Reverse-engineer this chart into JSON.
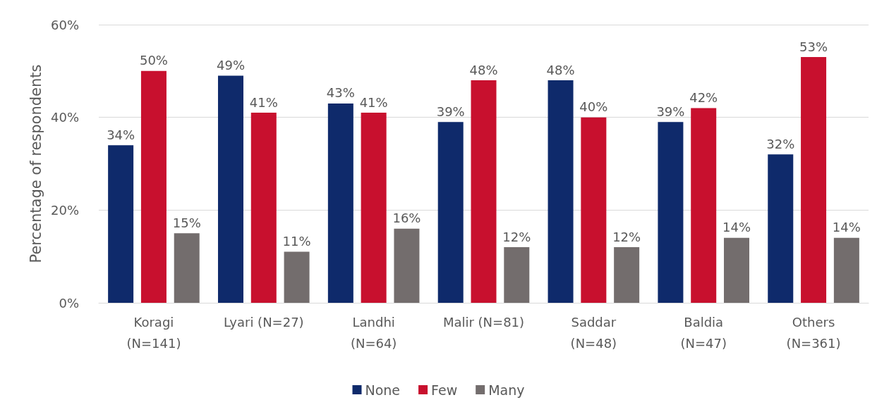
{
  "chart_data": {
    "type": "bar",
    "ylabel": "Percentage of respondents",
    "categories": [
      "Koragi\n(N=141)",
      "Lyari (N=27)",
      "Landhi\n(N=64)",
      "Malir (N=81)",
      "Saddar\n(N=48)",
      "Baldia\n(N=47)",
      "Others\n(N=361)"
    ],
    "series": [
      {
        "name": "None",
        "color": "#0f2a6b",
        "values": [
          34,
          49,
          43,
          39,
          48,
          39,
          32
        ],
        "value_labels": [
          "34%",
          "49%",
          "43%",
          "39%",
          "48%",
          "39%",
          "32%"
        ]
      },
      {
        "name": "Few",
        "color": "#c8102e",
        "values": [
          50,
          41,
          41,
          48,
          40,
          42,
          53
        ],
        "value_labels": [
          "50%",
          "41%",
          "41%",
          "48%",
          "40%",
          "42%",
          "53%"
        ]
      },
      {
        "name": "Many",
        "color": "#736d6d",
        "values": [
          15,
          11,
          16,
          12,
          12,
          14,
          14
        ],
        "value_labels": [
          "15%",
          "11%",
          "16%",
          "12%",
          "12%",
          "14%",
          "14%"
        ]
      }
    ],
    "ylim": [
      0,
      60
    ],
    "yticks": [
      {
        "value": 0,
        "label": "0%"
      },
      {
        "value": 20,
        "label": "20%"
      },
      {
        "value": 40,
        "label": "40%"
      },
      {
        "value": 60,
        "label": "60%"
      }
    ],
    "grid": "y",
    "legend": "bottom"
  }
}
